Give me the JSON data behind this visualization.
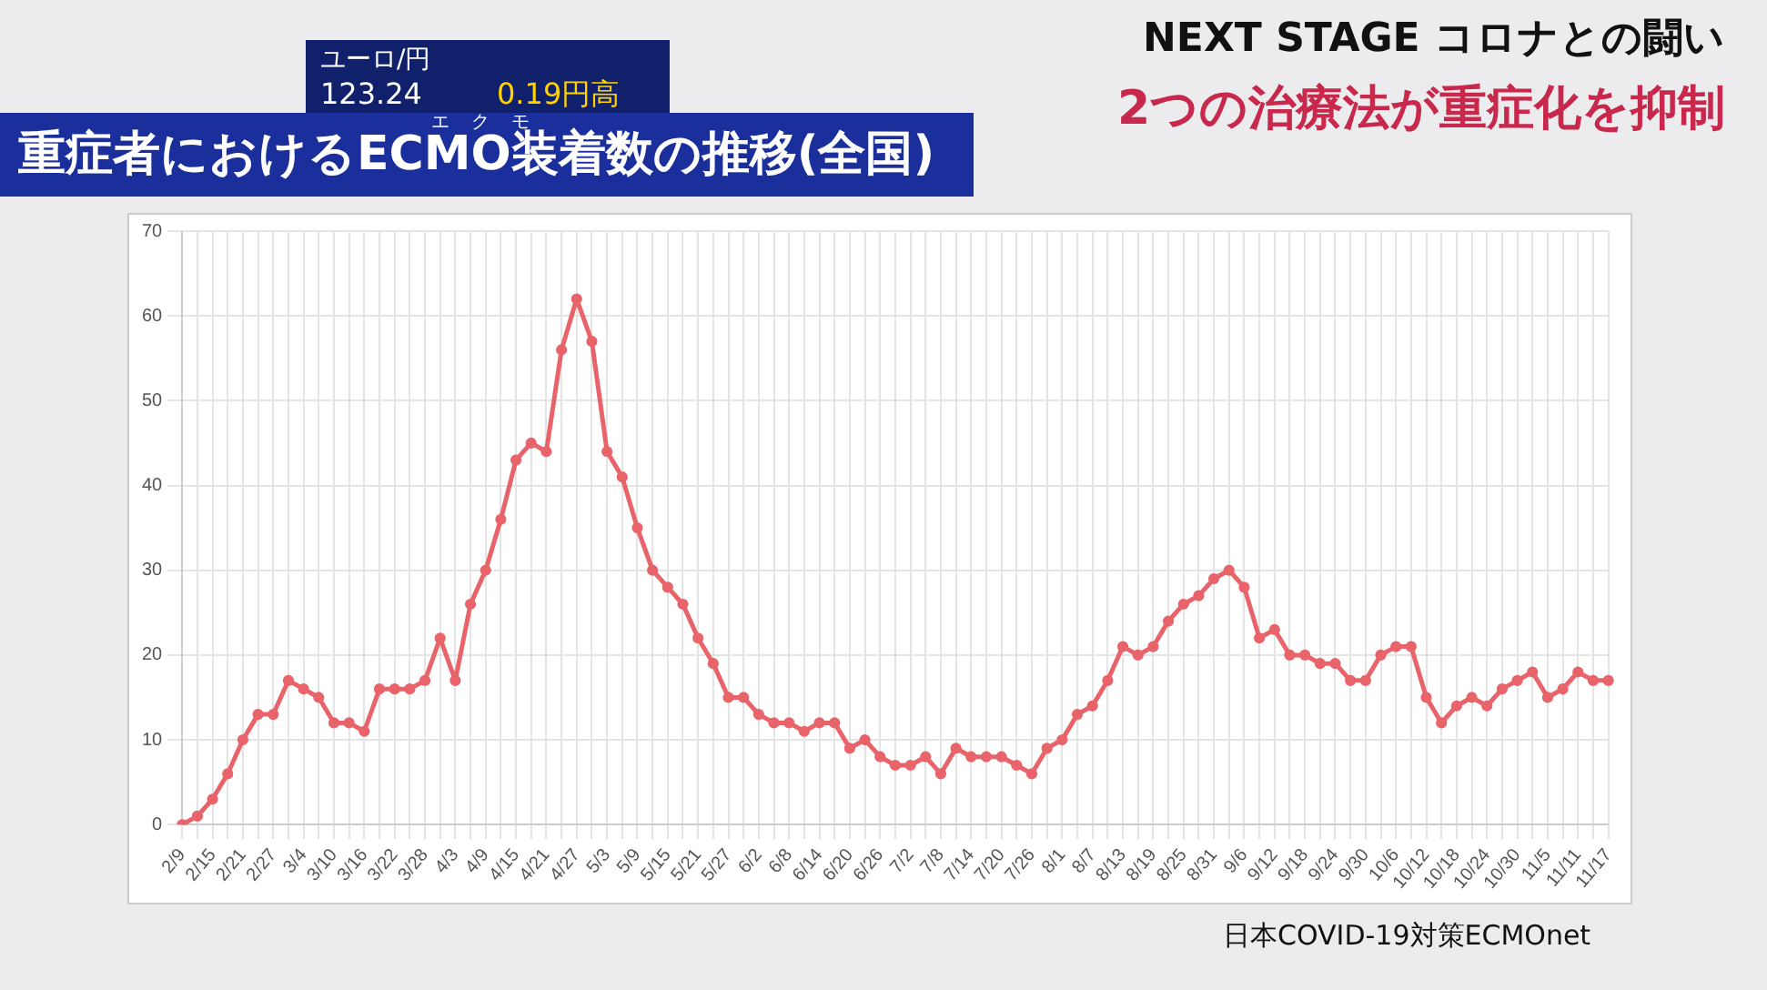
{
  "chart_data": {
    "type": "line",
    "title": "重症者におけるECMO装着数の推移(全国)",
    "subtitle": "NEXT STAGE コロナとの闘い",
    "annotations": [
      "エクモ",
      "ユーロ/円",
      "123.24",
      "0.19円高",
      "2つの治療法が重症化を抑制",
      "日本COVID-19対策ECMOnet"
    ],
    "categories": [
      "2/9",
      null,
      "2/15",
      null,
      "2/21",
      null,
      "2/27",
      null,
      "3/4",
      null,
      "3/10",
      null,
      "3/16",
      null,
      "3/22",
      null,
      "3/28",
      null,
      "4/3",
      null,
      "4/9",
      null,
      "4/15",
      null,
      "4/21",
      null,
      "4/27",
      null,
      "5/3",
      null,
      "5/9",
      null,
      "5/15",
      null,
      "5/21",
      null,
      "5/27",
      null,
      "6/2",
      null,
      "6/8",
      null,
      "6/14",
      null,
      "6/20",
      null,
      "6/26",
      null,
      "7/2",
      null,
      "7/8",
      null,
      "7/14",
      null,
      "7/20",
      null,
      "7/26",
      null,
      "8/1",
      null,
      "8/7",
      null,
      "8/13",
      null,
      "8/19",
      null,
      "8/25",
      null,
      "8/31",
      null,
      "9/6",
      null,
      "9/12",
      null,
      "9/18",
      null,
      "9/24",
      null,
      "9/30",
      null,
      "10/6",
      null,
      "10/12",
      null,
      "10/18",
      null,
      "10/24",
      null,
      "10/30",
      null,
      "11/5",
      null,
      "11/11",
      null,
      "11/17"
    ],
    "series": [
      {
        "color": "#e8646a",
        "values": [
          0,
          1,
          3,
          6,
          10,
          13,
          13,
          17,
          16,
          15,
          12,
          12,
          11,
          16,
          16,
          16,
          17,
          22,
          17,
          26,
          30,
          36,
          43,
          45,
          44,
          56,
          62,
          57,
          44,
          41,
          35,
          30,
          28,
          26,
          22,
          19,
          15,
          15,
          13,
          12,
          12,
          11,
          12,
          12,
          9,
          10,
          8,
          7,
          7,
          8,
          6,
          9,
          8,
          8,
          8,
          7,
          6,
          9,
          10,
          13,
          14,
          17,
          21,
          20,
          21,
          24,
          26,
          27,
          29,
          30,
          28,
          22,
          23,
          20,
          20,
          19,
          19,
          17,
          17,
          20,
          21,
          21,
          15,
          12,
          14,
          15,
          14,
          16,
          17,
          18,
          15,
          16,
          18,
          17,
          17
        ]
      }
    ],
    "ylim": [
      0,
      70
    ],
    "yticks": [
      0,
      10,
      20,
      30,
      40,
      50,
      60,
      70
    ],
    "grid": true,
    "marker": "circle",
    "line_style": "solid",
    "legend": false
  }
}
